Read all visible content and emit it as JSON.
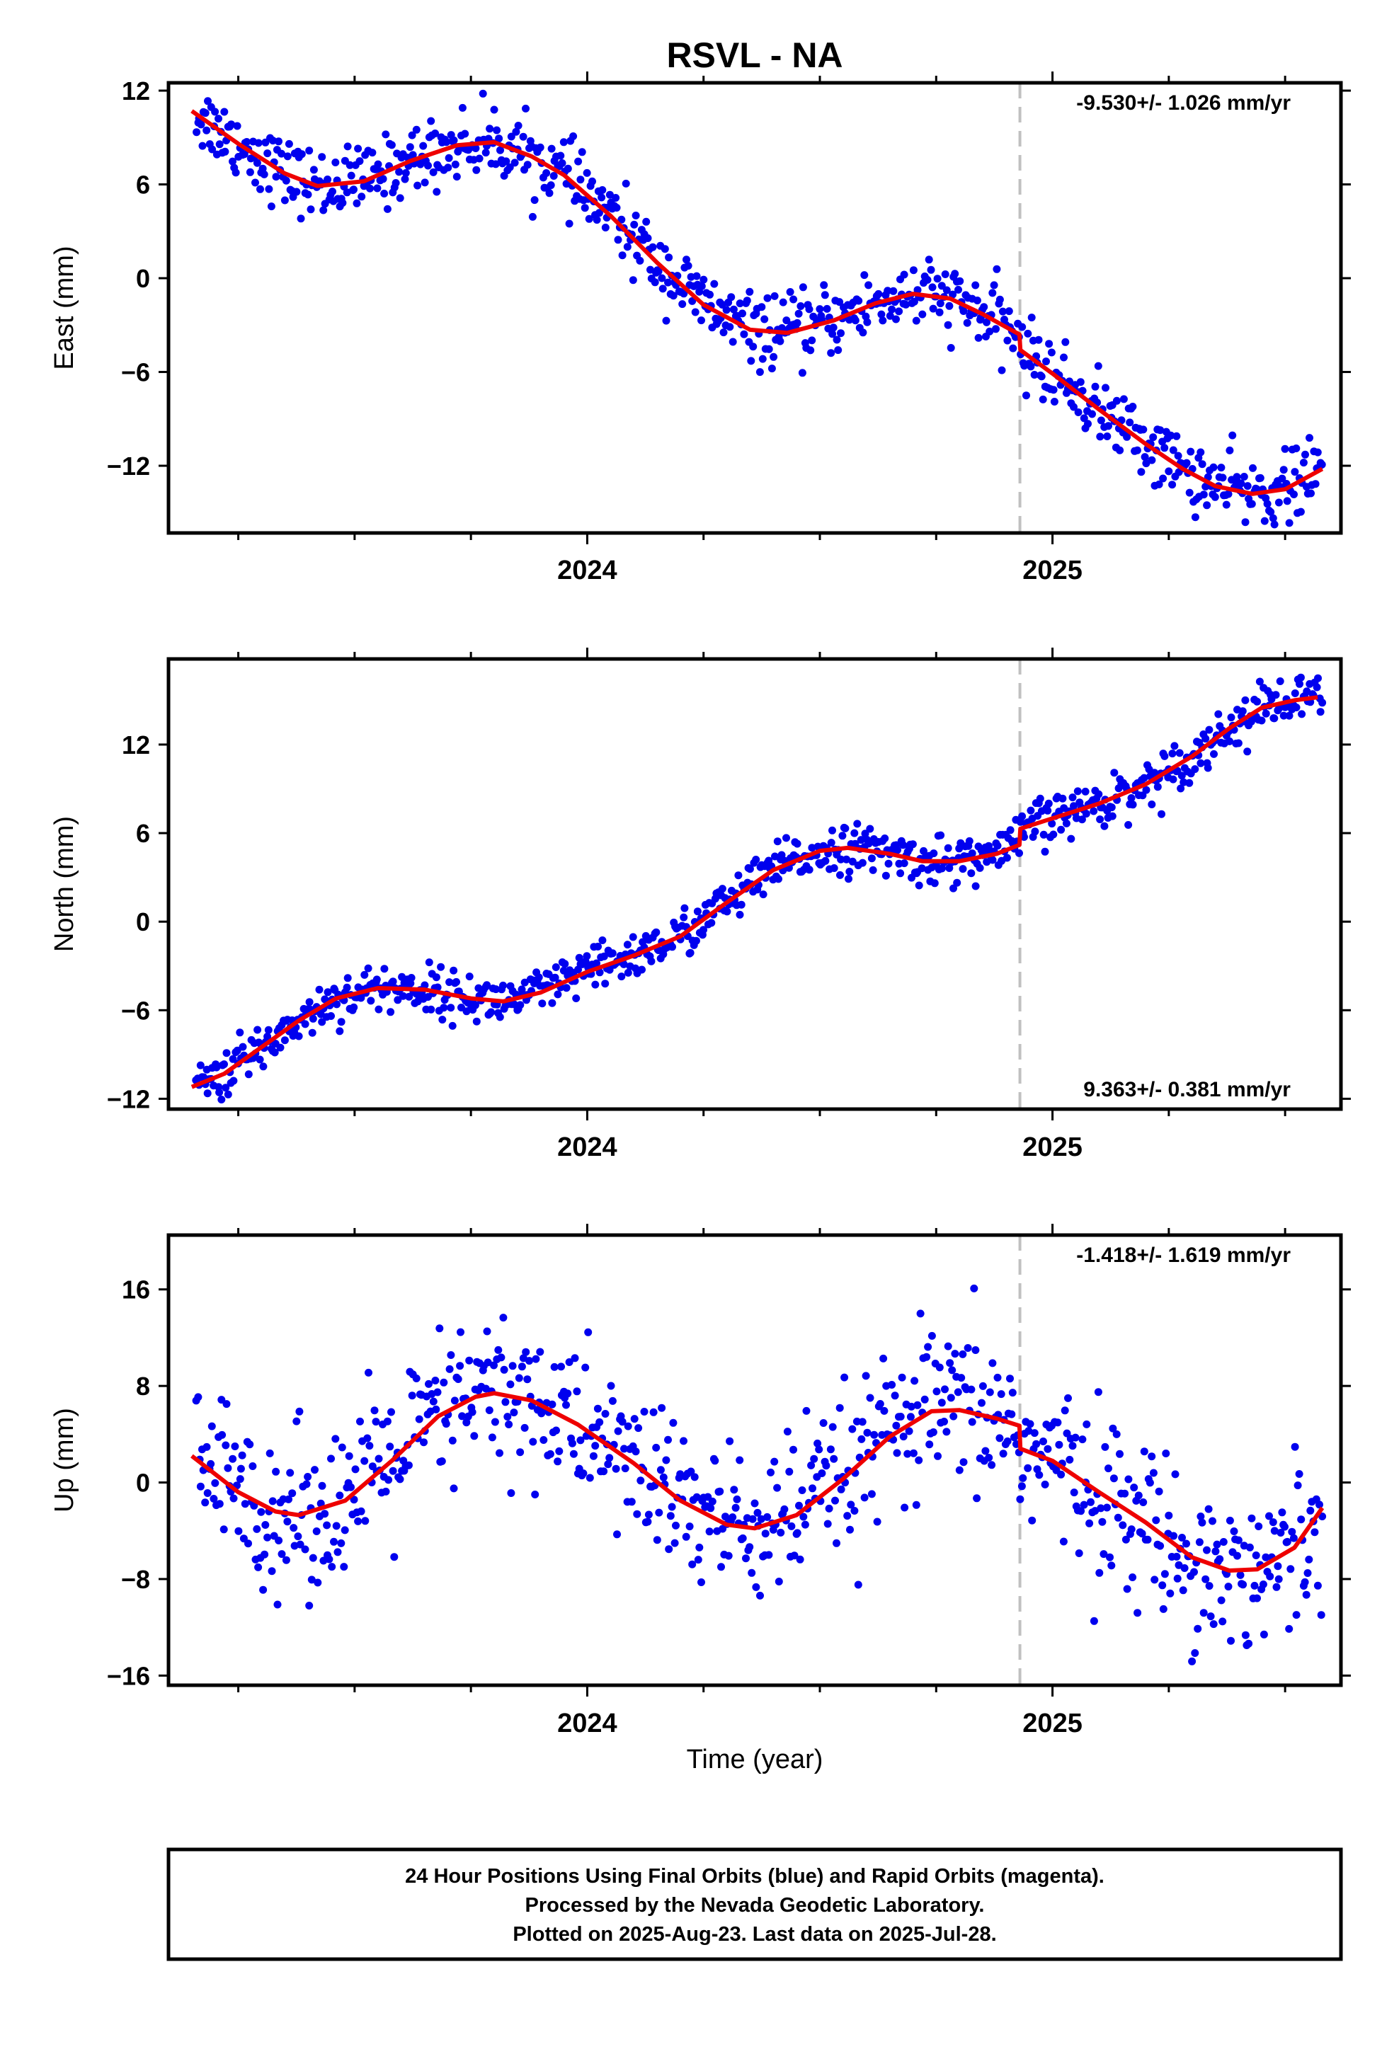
{
  "colors": {
    "final_orbit_points": "#0000ee",
    "model_fit": "#ee0000",
    "break_line": "#c0c0c0",
    "frame": "#000000"
  },
  "chart_data": {
    "type": "scatter",
    "title": "RSVL - NA",
    "xlabel": "Time (year)",
    "x_tick_labels": [
      "2024",
      "2025"
    ],
    "x_major_ticks": [
      2024.0,
      2025.0
    ],
    "x_minor_ticks": [
      2023.25,
      2023.5,
      2023.75,
      2024.25,
      2024.5,
      2024.75,
      2025.25,
      2025.5
    ],
    "xlim": [
      2023.1,
      2025.62
    ],
    "break_epoch": 2024.93,
    "panels": [
      {
        "name": "east",
        "ylabel": "East (mm)",
        "ylim": [
          -16.3,
          12.5
        ],
        "yticks": [
          12,
          6,
          0,
          -6,
          -12
        ],
        "ytick_labels": [
          "12",
          "6",
          "0",
          "−6",
          "−12"
        ],
        "rate": "-9.530+/- 1.026 mm/yr",
        "rate_position": "top-right",
        "trend": -9.53,
        "seasonal": [
          {
            "amp": 2.6,
            "period_yr": 1.0,
            "phase_yr": 0.0
          }
        ],
        "fit_knots": [
          [
            2023.15,
            10.7
          ],
          [
            2023.25,
            8.6
          ],
          [
            2023.35,
            6.7
          ],
          [
            2023.42,
            5.9
          ],
          [
            2023.52,
            6.2
          ],
          [
            2023.62,
            7.5
          ],
          [
            2023.72,
            8.5
          ],
          [
            2023.8,
            8.7
          ],
          [
            2023.88,
            7.8
          ],
          [
            2023.95,
            6.6
          ],
          [
            2024.05,
            4.0
          ],
          [
            2024.15,
            1.0
          ],
          [
            2024.25,
            -1.7
          ],
          [
            2024.35,
            -3.3
          ],
          [
            2024.43,
            -3.5
          ],
          [
            2024.53,
            -2.7
          ],
          [
            2024.62,
            -1.6
          ],
          [
            2024.7,
            -1.0
          ],
          [
            2024.78,
            -1.3
          ],
          [
            2024.85,
            -2.3
          ],
          [
            2024.929,
            -3.6
          ],
          [
            2024.931,
            -4.6
          ],
          [
            2025.0,
            -6.1
          ],
          [
            2025.1,
            -8.4
          ],
          [
            2025.2,
            -10.6
          ],
          [
            2025.28,
            -12.2
          ],
          [
            2025.35,
            -13.3
          ],
          [
            2025.43,
            -13.8
          ],
          [
            2025.5,
            -13.5
          ],
          [
            2025.58,
            -12.2
          ]
        ],
        "noise_mm": 1.1
      },
      {
        "name": "north",
        "ylabel": "North (mm)",
        "ylim": [
          -12.7,
          17.8
        ],
        "yticks": [
          12,
          6,
          0,
          -6,
          -12
        ],
        "ytick_labels": [
          "12",
          "6",
          "0",
          "−6",
          "−12"
        ],
        "rate": "9.363+/- 0.381 mm/yr",
        "rate_position": "bottom-right",
        "trend": 9.363,
        "fit_knots": [
          [
            2023.15,
            -11.2
          ],
          [
            2023.22,
            -10.3
          ],
          [
            2023.3,
            -8.5
          ],
          [
            2023.38,
            -6.7
          ],
          [
            2023.46,
            -5.2
          ],
          [
            2023.55,
            -4.5
          ],
          [
            2023.65,
            -4.6
          ],
          [
            2023.75,
            -5.2
          ],
          [
            2023.82,
            -5.4
          ],
          [
            2023.9,
            -4.8
          ],
          [
            2024.0,
            -3.4
          ],
          [
            2024.1,
            -2.3
          ],
          [
            2024.2,
            -1.0
          ],
          [
            2024.3,
            1.3
          ],
          [
            2024.4,
            3.5
          ],
          [
            2024.5,
            4.8
          ],
          [
            2024.56,
            5.0
          ],
          [
            2024.65,
            4.6
          ],
          [
            2024.72,
            4.1
          ],
          [
            2024.8,
            4.1
          ],
          [
            2024.88,
            4.6
          ],
          [
            2024.929,
            5.2
          ],
          [
            2024.931,
            6.3
          ],
          [
            2025.0,
            7.0
          ],
          [
            2025.1,
            8.0
          ],
          [
            2025.2,
            9.3
          ],
          [
            2025.3,
            11.2
          ],
          [
            2025.38,
            13.1
          ],
          [
            2025.45,
            14.5
          ],
          [
            2025.52,
            15.0
          ],
          [
            2025.57,
            15.2
          ]
        ],
        "noise_mm": 0.8
      },
      {
        "name": "up",
        "ylabel": "Up (mm)",
        "ylim": [
          -16.8,
          20.5
        ],
        "yticks": [
          16,
          8,
          0,
          -8,
          -16
        ],
        "ytick_labels": [
          "16",
          "8",
          "0",
          "−8",
          "−16"
        ],
        "rate": "-1.418+/- 1.619 mm/yr",
        "rate_position": "top-right",
        "trend": -1.418,
        "fit_knots": [
          [
            2023.15,
            2.2
          ],
          [
            2023.25,
            -0.8
          ],
          [
            2023.33,
            -2.4
          ],
          [
            2023.38,
            -2.7
          ],
          [
            2023.48,
            -1.5
          ],
          [
            2023.58,
            1.8
          ],
          [
            2023.68,
            5.5
          ],
          [
            2023.76,
            7.1
          ],
          [
            2023.8,
            7.4
          ],
          [
            2023.88,
            6.8
          ],
          [
            2023.98,
            4.8
          ],
          [
            2024.1,
            1.6
          ],
          [
            2024.2,
            -1.5
          ],
          [
            2024.3,
            -3.5
          ],
          [
            2024.36,
            -3.8
          ],
          [
            2024.45,
            -2.7
          ],
          [
            2024.55,
            0.3
          ],
          [
            2024.65,
            3.8
          ],
          [
            2024.74,
            5.9
          ],
          [
            2024.8,
            6.0
          ],
          [
            2024.88,
            5.3
          ],
          [
            2024.929,
            4.7
          ],
          [
            2024.931,
            2.8
          ],
          [
            2025.0,
            1.8
          ],
          [
            2025.1,
            -0.8
          ],
          [
            2025.2,
            -3.3
          ],
          [
            2025.3,
            -6.2
          ],
          [
            2025.38,
            -7.3
          ],
          [
            2025.44,
            -7.2
          ],
          [
            2025.52,
            -5.4
          ],
          [
            2025.58,
            -2.1
          ]
        ],
        "noise_mm": 3.3
      }
    ]
  },
  "footer": {
    "line1": "24 Hour Positions Using Final Orbits (blue) and Rapid Orbits (magenta).",
    "line2": "Processed by the Nevada Geodetic Laboratory.",
    "line3": "Plotted on 2025-Aug-23. Last data on 2025-Jul-28."
  }
}
